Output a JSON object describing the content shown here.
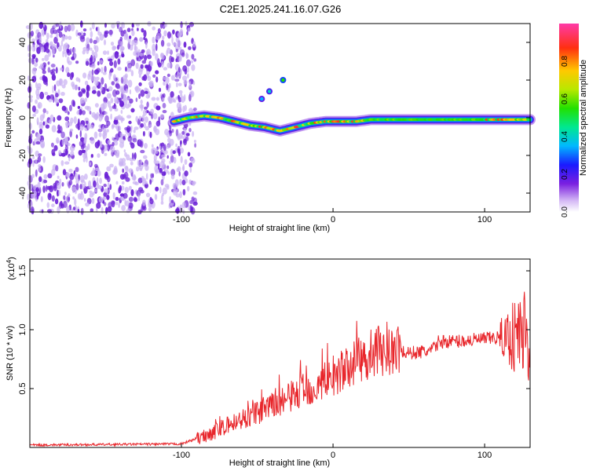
{
  "title": "C2E1.2025.241.16.07.G26",
  "colors": {
    "snr_line": "#e8262b",
    "noise_purple": "#6a1fd6",
    "noise_light": "#c9b0f2",
    "axis": "#000000"
  },
  "chart_data": [
    {
      "id": "spectrogram",
      "type": "heatmap",
      "xlabel": "Height of straight line (km)",
      "ylabel": "Frequency (Hz)",
      "xlim": [
        -200,
        130
      ],
      "ylim": [
        -50,
        50
      ],
      "xticks": [
        -100,
        0,
        100
      ],
      "yticks": [
        -40,
        -20,
        0,
        20,
        40
      ],
      "noise_region_x": [
        -200,
        -95
      ],
      "signal_track": {
        "x": [
          -105,
          -95,
          -85,
          -75,
          -65,
          -55,
          -45,
          -35,
          -25,
          -15,
          -5,
          5,
          15,
          25,
          45,
          65,
          85,
          105,
          125,
          130
        ],
        "freq": [
          -2,
          0,
          1,
          0,
          -2,
          -4,
          -5,
          -7,
          -5,
          -3,
          -2,
          -2,
          -2,
          -1,
          -1,
          -1,
          -1,
          -1,
          -1,
          -1
        ]
      },
      "side_blobs": [
        {
          "x": -47,
          "freq": 10,
          "amp": 0.35
        },
        {
          "x": -42,
          "freq": 14,
          "amp": 0.4
        },
        {
          "x": -33,
          "freq": 20,
          "amp": 0.55
        }
      ],
      "colorbar": {
        "label": "Normalized spectral amplitude",
        "range": [
          0,
          1
        ],
        "ticks": [
          "0.0",
          "0.2",
          "0.4",
          "0.6",
          "0.8"
        ],
        "tick_values": [
          0,
          0.2,
          0.4,
          0.6,
          0.8
        ]
      }
    },
    {
      "id": "snr",
      "type": "line",
      "xlabel": "Height of straight line (km)",
      "ylabel": "SNR (10 * v/v)",
      "scale_label": "(x10",
      "scale_exponent": "4",
      "xlim": [
        -200,
        130
      ],
      "ylim": [
        0,
        1.6
      ],
      "xticks": [
        -100,
        0,
        100
      ],
      "yticks": [
        0.5,
        1.0,
        1.5
      ],
      "ytick_labels": [
        "0.5",
        "1.0",
        "1.5"
      ],
      "trend": {
        "x": [
          -200,
          -100,
          -85,
          -70,
          -55,
          -40,
          -25,
          -10,
          0,
          10,
          20,
          30,
          40,
          50,
          65,
          70,
          80,
          100,
          120,
          130
        ],
        "y": [
          0.02,
          0.03,
          0.1,
          0.18,
          0.27,
          0.35,
          0.45,
          0.52,
          0.6,
          0.68,
          0.76,
          0.8,
          0.82,
          0.8,
          0.82,
          0.9,
          0.9,
          0.92,
          0.95,
          1.0
        ]
      }
    }
  ]
}
